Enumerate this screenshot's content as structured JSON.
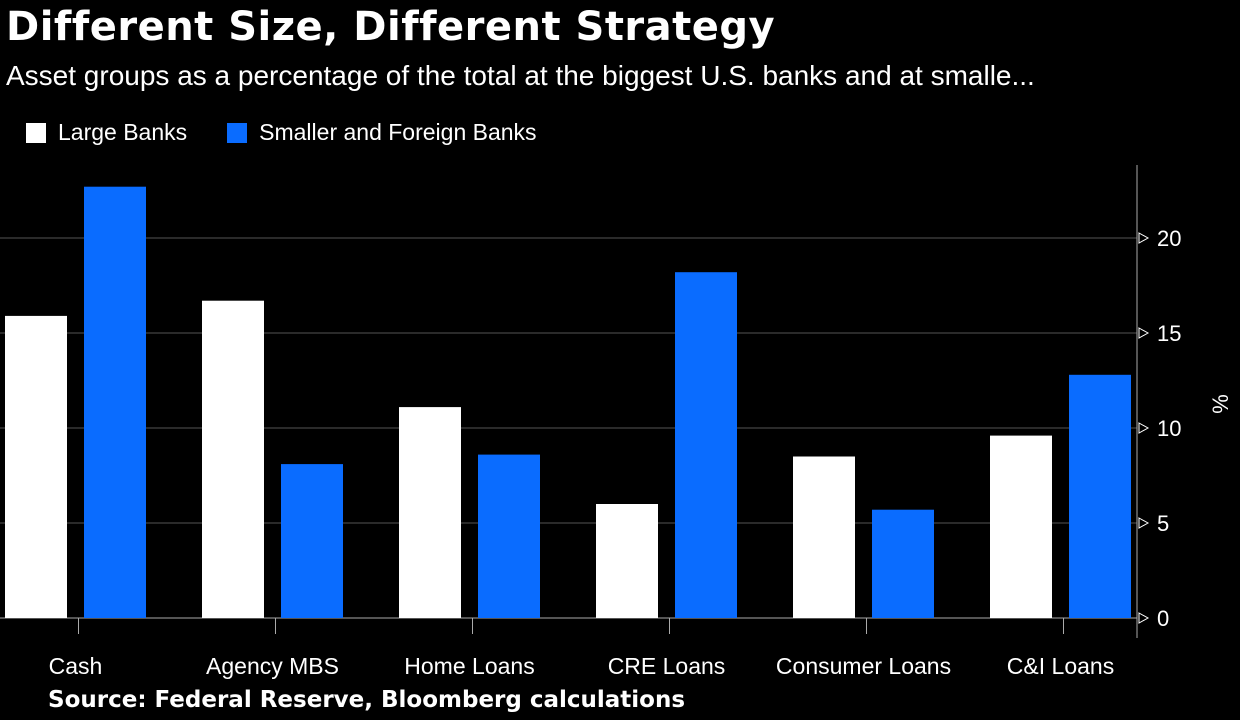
{
  "header": {
    "title": "Different Size, Different Strategy",
    "subtitle": "Asset groups as a percentage of the total at the biggest U.S. banks and at smalle..."
  },
  "footer": {
    "source": "Source: Federal Reserve, Bloomberg calculations"
  },
  "colors": {
    "large": "#ffffff",
    "smaller": "#0a6cff",
    "grid": "#555555",
    "background": "#000000"
  },
  "chart_data": {
    "type": "bar",
    "title": "Different Size, Different Strategy",
    "subtitle": "Asset groups as a percentage of the total at the biggest U.S. banks and at smalle...",
    "categories": [
      "Cash",
      "Agency MBS",
      "Home Loans",
      "CRE Loans",
      "Consumer Loans",
      "C&I Loans"
    ],
    "series": [
      {
        "name": "Large Banks",
        "values": [
          15.9,
          16.7,
          11.1,
          6.0,
          8.5,
          9.6
        ]
      },
      {
        "name": "Smaller and Foreign Banks",
        "values": [
          22.7,
          8.1,
          8.6,
          18.2,
          5.7,
          12.8
        ]
      }
    ],
    "ylabel": "%",
    "ylim": [
      0,
      23.5
    ],
    "yticks": [
      0,
      5,
      10,
      15,
      20
    ],
    "y_axis_position": "right",
    "grid": true,
    "legend_placement": "top-left"
  }
}
